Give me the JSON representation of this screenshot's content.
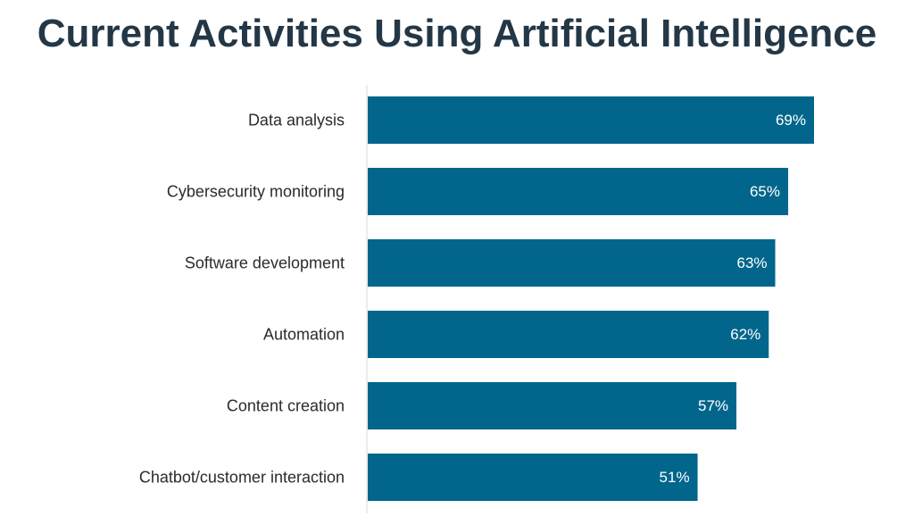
{
  "chart_data": {
    "type": "bar",
    "orientation": "horizontal",
    "title": "Current Activities Using Artificial Intelligence",
    "categories": [
      "Data analysis",
      "Cybersecurity monitoring",
      "Software development",
      "Automation",
      "Content creation",
      "Chatbot/customer interaction"
    ],
    "values": [
      69,
      65,
      63,
      62,
      57,
      51
    ],
    "value_labels": [
      "69%",
      "65%",
      "63%",
      "62%",
      "57%",
      "51%"
    ],
    "xlim": [
      0,
      85
    ],
    "grid": false,
    "legend": "none",
    "colors": {
      "bar": "#02668C",
      "title": "#243746",
      "axis": "#d9d9d9",
      "category_text": "#2b2b2b",
      "value_text": "#ffffff"
    }
  }
}
